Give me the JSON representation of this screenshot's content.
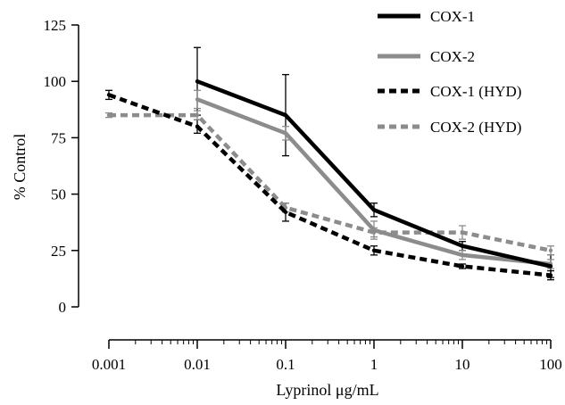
{
  "chart_data": {
    "type": "line",
    "xscale": "log",
    "xlabel": "Lyprinol μg/mL",
    "ylabel": "% Control",
    "xlim": [
      0.001,
      100
    ],
    "ylim": [
      0,
      125
    ],
    "x_ticks": [
      0.001,
      0.01,
      0.1,
      1,
      10,
      100
    ],
    "x_tick_labels": [
      "0.001",
      "0.01",
      "0.1",
      "1",
      "10",
      "100"
    ],
    "y_ticks": [
      0,
      25,
      50,
      75,
      100,
      125
    ],
    "y_tick_labels": [
      "0",
      "25",
      "50",
      "75",
      "100",
      "125"
    ],
    "grid": false,
    "legend_position": "top-right",
    "series": [
      {
        "name": "COX-1",
        "color": "#000000",
        "dashed": false,
        "x": [
          0.01,
          0.1,
          1,
          10,
          100
        ],
        "values": [
          100,
          85,
          43,
          27,
          18
        ],
        "error": [
          15,
          18,
          3,
          2,
          5
        ]
      },
      {
        "name": "COX-2",
        "color": "#8c8c8c",
        "dashed": false,
        "x": [
          0.01,
          0.1,
          1,
          10,
          100
        ],
        "values": [
          92,
          77,
          34,
          23,
          19
        ],
        "error": [
          4,
          3,
          4,
          2,
          2
        ]
      },
      {
        "name": "COX-1 (HYD)",
        "color": "#000000",
        "dashed": true,
        "x": [
          0.001,
          0.01,
          0.1,
          1,
          10,
          100
        ],
        "values": [
          94,
          80,
          42,
          25,
          18,
          14
        ],
        "error": [
          2,
          3,
          4,
          2,
          1,
          2
        ]
      },
      {
        "name": "COX-2 (HYD)",
        "color": "#8c8c8c",
        "dashed": true,
        "x": [
          0.001,
          0.01,
          0.1,
          1,
          10,
          100
        ],
        "values": [
          85,
          85,
          44,
          33,
          33,
          25
        ],
        "error": [
          1,
          2,
          2,
          2,
          3,
          2
        ]
      }
    ]
  }
}
